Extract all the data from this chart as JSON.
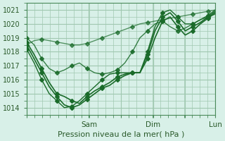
{
  "title": "",
  "xlabel": "Pression niveau de la mer( hPa )",
  "ylabel": "",
  "background_color": "#d8f0e8",
  "plot_bg_color": "#d8f0e8",
  "grid_color": "#a0c8b0",
  "line_color": "#1a6b2a",
  "ylim": [
    1013.5,
    1021.5
  ],
  "yticks": [
    1014,
    1015,
    1016,
    1017,
    1018,
    1019,
    1020,
    1021
  ],
  "xtick_labels": [
    "",
    "Sam",
    "",
    "Dim",
    "",
    "Lun"
  ],
  "xtick_positions": [
    0,
    0.33,
    0.5,
    0.67,
    0.84,
    1.0
  ],
  "day_lines": [
    0.33,
    0.67,
    1.0
  ],
  "series": [
    [
      1018.5,
      1018.8,
      1018.9,
      1018.8,
      1018.7,
      1018.6,
      1018.5,
      1018.5,
      1018.6,
      1018.8,
      1019.0,
      1019.2,
      1019.4,
      1019.6,
      1019.8,
      1020.0,
      1020.1,
      1020.2,
      1020.3,
      1020.4,
      1020.5,
      1020.6,
      1020.7,
      1020.8,
      1020.9,
      1021.0
    ],
    [
      1019.0,
      1018.5,
      1017.5,
      1016.8,
      1016.5,
      1016.7,
      1017.0,
      1017.2,
      1016.8,
      1016.5,
      1016.4,
      1016.5,
      1016.7,
      1017.2,
      1018.0,
      1019.0,
      1019.5,
      1020.0,
      1020.2,
      1019.8,
      1019.5,
      1019.7,
      1020.0,
      1020.3,
      1020.5,
      1020.7
    ],
    [
      1018.7,
      1017.8,
      1016.8,
      1015.8,
      1015.0,
      1014.8,
      1014.5,
      1014.3,
      1014.8,
      1015.2,
      1015.5,
      1015.8,
      1016.2,
      1016.4,
      1016.5,
      1016.5,
      1017.5,
      1019.0,
      1020.2,
      1020.5,
      1019.8,
      1019.2,
      1019.5,
      1020.0,
      1020.4,
      1020.8
    ],
    [
      1018.5,
      1017.5,
      1016.5,
      1015.5,
      1014.8,
      1014.2,
      1014.0,
      1014.2,
      1014.6,
      1015.0,
      1015.4,
      1015.6,
      1016.0,
      1016.3,
      1016.5,
      1016.5,
      1017.8,
      1019.5,
      1020.5,
      1020.8,
      1020.2,
      1019.5,
      1019.8,
      1020.1,
      1020.5,
      1020.9
    ],
    [
      1018.2,
      1017.2,
      1016.0,
      1015.0,
      1014.5,
      1014.0,
      1014.1,
      1014.5,
      1015.0,
      1015.5,
      1016.0,
      1016.4,
      1016.5,
      1016.5,
      1016.5,
      1016.5,
      1018.0,
      1019.8,
      1020.8,
      1021.0,
      1020.5,
      1020.0,
      1020.0,
      1020.3,
      1020.6,
      1021.0
    ]
  ],
  "marker_series": [
    0,
    1,
    2,
    3,
    4
  ],
  "marker_every": 2,
  "marker_style": "D",
  "marker_size": 3
}
